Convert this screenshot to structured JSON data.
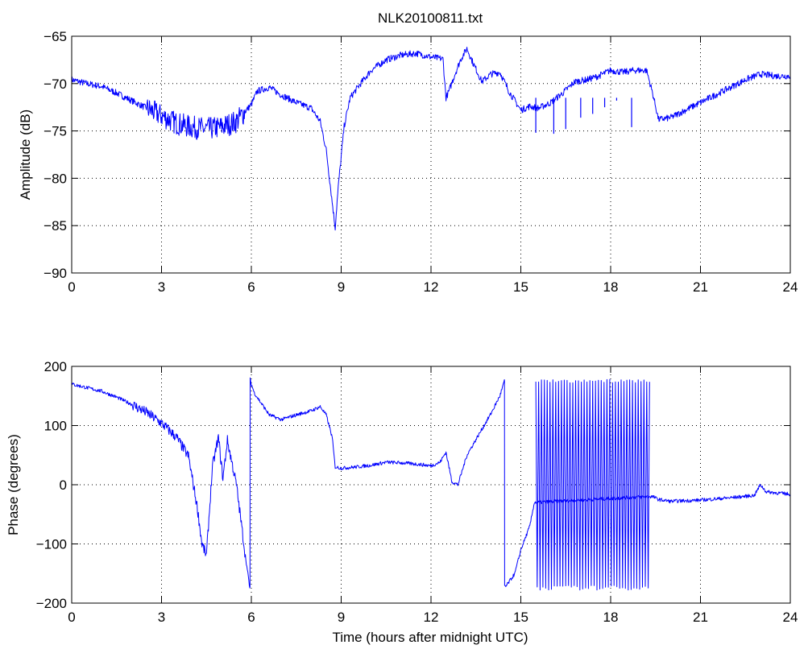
{
  "chart_data": [
    {
      "type": "line",
      "title": "NLK20100811.txt",
      "xlabel": "",
      "ylabel": "Amplitude (dB)",
      "xlim": [
        0,
        24
      ],
      "ylim": [
        -90,
        -65
      ],
      "xticks": [
        "0",
        "3",
        "6",
        "9",
        "12",
        "15",
        "18",
        "21",
        "24"
      ],
      "yticks": [
        "−65",
        "−70",
        "−75",
        "−80",
        "−85",
        "−90"
      ],
      "grid": true,
      "color": "#0000ff",
      "series": [
        {
          "name": "",
          "x": [
            0.0,
            0.5,
            1.0,
            1.5,
            2.0,
            2.5,
            3.0,
            3.5,
            4.0,
            4.5,
            5.0,
            5.5,
            6.0,
            6.2,
            6.6,
            7.0,
            7.5,
            8.0,
            8.3,
            8.5,
            8.7,
            8.8,
            8.9,
            9.1,
            9.3,
            9.6,
            10.0,
            10.5,
            11.0,
            11.5,
            12.0,
            12.4,
            12.5,
            12.6,
            12.8,
            13.0,
            13.2,
            13.4,
            13.7,
            14.0,
            14.3,
            14.6,
            15.0,
            15.3,
            15.6,
            16.0,
            16.4,
            16.8,
            17.2,
            17.6,
            18.0,
            18.4,
            18.8,
            19.2,
            19.4,
            19.6,
            20.0,
            20.5,
            21.0,
            21.5,
            22.0,
            22.5,
            23.0,
            23.5,
            24.0
          ],
          "y": [
            -69.6,
            -70.0,
            -70.3,
            -71.0,
            -71.8,
            -72.6,
            -73.4,
            -74.2,
            -74.6,
            -74.8,
            -74.6,
            -74.0,
            -72.2,
            -70.8,
            -70.4,
            -71.2,
            -72.0,
            -72.6,
            -74.0,
            -77.0,
            -82.5,
            -85.2,
            -81.0,
            -74.5,
            -71.5,
            -70.2,
            -68.6,
            -67.5,
            -67.0,
            -66.8,
            -67.2,
            -67.4,
            -71.5,
            -70.8,
            -69.0,
            -67.4,
            -66.3,
            -67.8,
            -69.8,
            -69.0,
            -68.8,
            -70.8,
            -72.8,
            -72.4,
            -72.6,
            -72.0,
            -71.0,
            -69.8,
            -69.6,
            -69.2,
            -68.6,
            -68.8,
            -68.6,
            -68.6,
            -71.0,
            -73.8,
            -73.6,
            -72.8,
            -72.0,
            -71.2,
            -70.4,
            -69.6,
            -69.0,
            -69.2,
            -69.2
          ]
        }
      ]
    },
    {
      "type": "line",
      "title": "",
      "xlabel": "Time (hours after midnight UTC)",
      "ylabel": "Phase (degrees)",
      "xlim": [
        0,
        24
      ],
      "ylim": [
        -200,
        200
      ],
      "xticks": [
        "0",
        "3",
        "6",
        "9",
        "12",
        "15",
        "18",
        "21",
        "24"
      ],
      "yticks": [
        "200",
        "100",
        "0",
        "−100",
        "−200"
      ],
      "grid": true,
      "color": "#0000ff",
      "series": [
        {
          "name": "",
          "x": [
            0.0,
            0.5,
            1.0,
            1.5,
            2.0,
            2.5,
            3.0,
            3.5,
            3.9,
            4.2,
            4.35,
            4.5,
            4.7,
            4.9,
            5.05,
            5.2,
            5.5,
            5.8,
            5.95,
            5.96,
            6.0,
            6.1,
            6.3,
            6.6,
            7.0,
            7.5,
            8.0,
            8.3,
            8.5,
            8.7,
            8.8,
            9.0,
            9.5,
            10.0,
            10.5,
            11.0,
            11.5,
            12.0,
            12.3,
            12.5,
            12.7,
            12.9,
            13.2,
            13.6,
            14.0,
            14.3,
            14.45,
            14.46,
            14.5,
            14.8,
            15.0,
            15.3,
            15.45,
            19.2,
            19.4,
            19.6,
            20.0,
            21.0,
            22.0,
            22.8,
            23.0,
            23.2,
            24.0
          ],
          "y": [
            170,
            164,
            158,
            148,
            136,
            122,
            104,
            80,
            48,
            -40,
            -100,
            -120,
            30,
            80,
            10,
            75,
            0,
            -120,
            -175,
            178,
            170,
            155,
            140,
            118,
            110,
            118,
            125,
            132,
            118,
            80,
            30,
            28,
            30,
            33,
            38,
            37,
            35,
            32,
            38,
            55,
            5,
            0,
            50,
            85,
            120,
            150,
            175,
            -170,
            -172,
            -150,
            -110,
            -70,
            -30,
            -20,
            -20,
            -25,
            -28,
            -26,
            -22,
            -18,
            0,
            -12,
            -16
          ]
        },
        {
          "name": "",
          "x_range": [
            15.5,
            19.3
          ],
          "y_range": [
            -178,
            178
          ],
          "cycles": 40
        }
      ]
    }
  ]
}
